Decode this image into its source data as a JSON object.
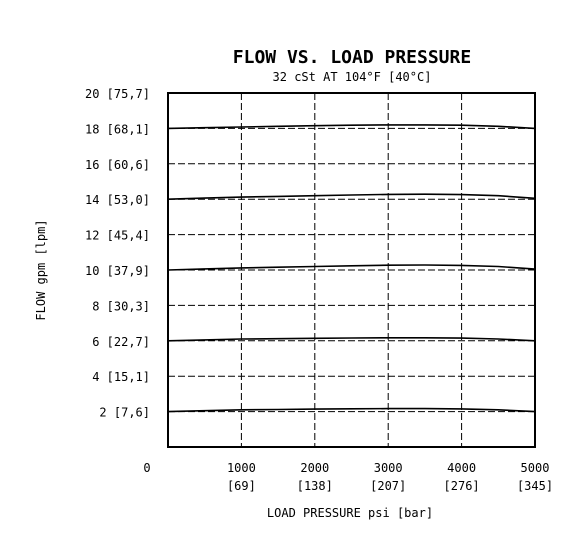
{
  "chart_data": {
    "type": "line",
    "title": "FLOW VS. LOAD PRESSURE",
    "subtitle": "32 cSt AT 104°F [40°C]",
    "xlabel": "LOAD PRESSURE psi [bar]",
    "ylabel": "FLOW gpm [lpm]",
    "xlim": [
      0,
      5000
    ],
    "ylim": [
      0,
      20
    ],
    "grid": true,
    "x_ticks": [
      {
        "value": 0,
        "label": "0",
        "sublabel": ""
      },
      {
        "value": 1000,
        "label": "1000",
        "sublabel": "[69]"
      },
      {
        "value": 2000,
        "label": "2000",
        "sublabel": "[138]"
      },
      {
        "value": 3000,
        "label": "3000",
        "sublabel": "[207]"
      },
      {
        "value": 4000,
        "label": "4000",
        "sublabel": "[276]"
      },
      {
        "value": 5000,
        "label": "5000",
        "sublabel": "[345]"
      }
    ],
    "y_ticks": [
      {
        "value": 2,
        "label": "2 [7,6]"
      },
      {
        "value": 4,
        "label": "4 [15,1]"
      },
      {
        "value": 6,
        "label": "6 [22,7]"
      },
      {
        "value": 8,
        "label": "8 [30,3]"
      },
      {
        "value": 10,
        "label": "10 [37,9]"
      },
      {
        "value": 12,
        "label": "12 [45,4]"
      },
      {
        "value": 14,
        "label": "14 [53,0]"
      },
      {
        "value": 16,
        "label": "16 [60,6]"
      },
      {
        "value": 18,
        "label": "18 [68,1]"
      },
      {
        "value": 20,
        "label": "20 [75,7]"
      }
    ],
    "x": [
      0,
      500,
      1000,
      1500,
      2000,
      2500,
      3000,
      3500,
      4000,
      4500,
      5000
    ],
    "series": [
      {
        "values": [
          2.0,
          2.05,
          2.1,
          2.12,
          2.14,
          2.16,
          2.17,
          2.17,
          2.15,
          2.1,
          2.0
        ]
      },
      {
        "values": [
          6.0,
          6.05,
          6.1,
          6.12,
          6.14,
          6.16,
          6.17,
          6.17,
          6.15,
          6.1,
          6.0
        ]
      },
      {
        "values": [
          10.0,
          10.06,
          10.12,
          10.16,
          10.2,
          10.24,
          10.27,
          10.28,
          10.26,
          10.2,
          10.05
        ]
      },
      {
        "values": [
          14.0,
          14.06,
          14.12,
          14.16,
          14.2,
          14.24,
          14.27,
          14.28,
          14.26,
          14.2,
          14.05
        ]
      },
      {
        "values": [
          18.0,
          18.04,
          18.08,
          18.12,
          18.15,
          18.18,
          18.2,
          18.2,
          18.18,
          18.12,
          18.0
        ]
      }
    ]
  }
}
